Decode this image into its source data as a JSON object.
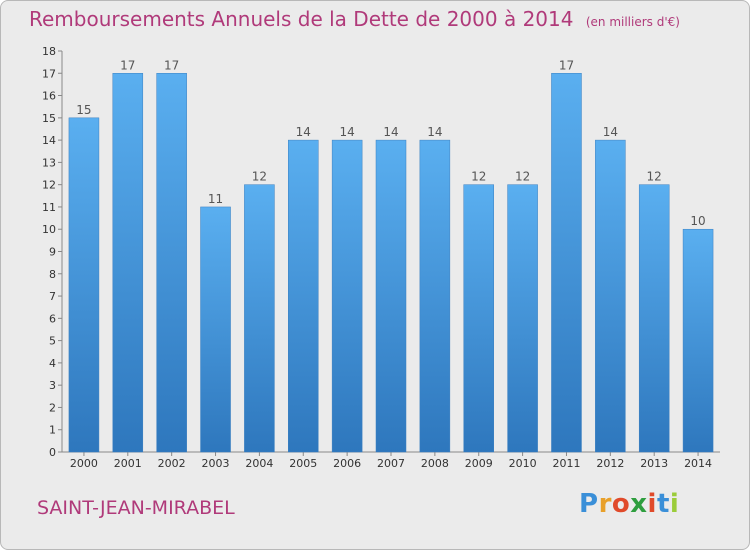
{
  "header": {
    "title": "Remboursements Annuels de la Dette de 2000 à 2014",
    "unit": "(en milliers d'€)"
  },
  "footer": {
    "commune": "SAINT-JEAN-MIRABEL",
    "logo": "Proxiti"
  },
  "colors": {
    "bar_top": "#5aaff0",
    "bar_bottom": "#2e77bd",
    "title": "#b03a7a",
    "background": "#ebebeb"
  },
  "chart_data": {
    "type": "bar",
    "title": "Remboursements Annuels de la Dette de 2000 à 2014",
    "xlabel": "",
    "ylabel": "",
    "ylim": [
      0,
      18
    ],
    "yticks": [
      0,
      1,
      2,
      3,
      4,
      5,
      6,
      7,
      8,
      9,
      10,
      11,
      12,
      13,
      14,
      15,
      16,
      17,
      18
    ],
    "grid": false,
    "categories": [
      "2000",
      "2001",
      "2002",
      "2003",
      "2004",
      "2005",
      "2006",
      "2007",
      "2008",
      "2009",
      "2010",
      "2011",
      "2012",
      "2013",
      "2014"
    ],
    "values": [
      15,
      17,
      17,
      11,
      12,
      14,
      14,
      14,
      14,
      12,
      12,
      17,
      14,
      12,
      10
    ]
  }
}
